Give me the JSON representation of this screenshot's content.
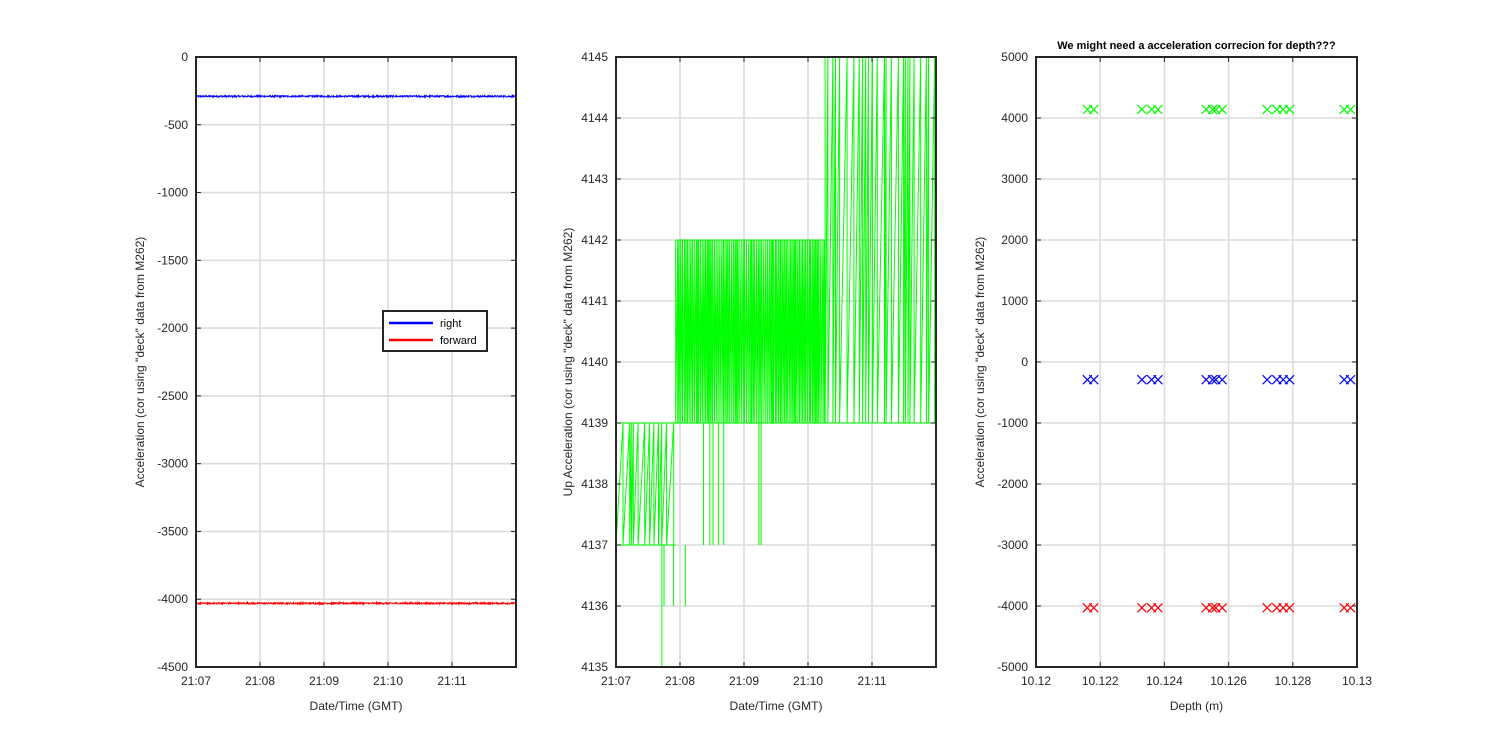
{
  "chart_data": [
    {
      "type": "line",
      "title": "",
      "xlabel": "Date/Time (GMT)",
      "ylabel": "Acceleration (cor using \"deck\" data from M262)",
      "xlim": [
        "21:07",
        "21:12"
      ],
      "xticks": [
        "21:07",
        "21:08",
        "21:09",
        "21:10",
        "21:11"
      ],
      "ylim": [
        -4500,
        0
      ],
      "yticks": [
        -4500,
        -4000,
        -3500,
        -3000,
        -2500,
        -2000,
        -1500,
        -1000,
        -500,
        0
      ],
      "grid": true,
      "legend": {
        "position": "center-right",
        "entries": [
          "right",
          "forward"
        ]
      },
      "series": [
        {
          "name": "right",
          "color": "#0000ff",
          "y_approx": -290,
          "noise": 6
        },
        {
          "name": "forward",
          "color": "#ff0000",
          "y_approx": -4030,
          "noise": 6
        }
      ]
    },
    {
      "type": "line",
      "title": "",
      "xlabel": "Date/Time (GMT)",
      "ylabel": "Up Acceleration (cor using \"deck\" data from M262)",
      "xlim": [
        "21:07",
        "21:12"
      ],
      "xticks": [
        "21:07",
        "21:08",
        "21:09",
        "21:10",
        "21:11"
      ],
      "ylim": [
        4135,
        4145
      ],
      "yticks": [
        4135,
        4136,
        4137,
        4138,
        4139,
        4140,
        4141,
        4142,
        4143,
        4144,
        4145
      ],
      "grid": true,
      "series": [
        {
          "name": "",
          "color": "#00ff00",
          "segments": [
            {
              "x": [
                "21:07:00",
                "21:07:56"
              ],
              "low": 4137,
              "high": 4139
            },
            {
              "x": [
                "21:07:56",
                "21:09:12"
              ],
              "low": 4139,
              "high": 4142
            },
            {
              "x": [
                "21:09:12",
                "21:10:16"
              ],
              "low": 4139,
              "high": 4142
            },
            {
              "x": [
                "21:10:16",
                "21:12:00"
              ],
              "low": 4139,
              "high": 4145
            }
          ],
          "dips": [
            {
              "x": "21:07:43",
              "y": 4135
            },
            {
              "x": "21:07:45",
              "y": 4136
            },
            {
              "x": "21:07:54",
              "y": 4136
            },
            {
              "x": "21:08:05",
              "y": 4136
            }
          ]
        }
      ]
    },
    {
      "type": "scatter",
      "title": "We might need a acceleration correcion for depth???",
      "xlabel": "Depth (m)",
      "ylabel": "Acceleration (cor using \"deck\" data from M262)",
      "xlim": [
        10.12,
        10.13
      ],
      "xticks": [
        10.12,
        10.122,
        10.124,
        10.126,
        10.128,
        10.13
      ],
      "ylim": [
        -5000,
        5000
      ],
      "yticks": [
        -5000,
        -4000,
        -3000,
        -2000,
        -1000,
        0,
        1000,
        2000,
        3000,
        4000,
        5000
      ],
      "grid": true,
      "marker": "x",
      "x": [
        10.1216,
        10.1218,
        10.1233,
        10.1236,
        10.1238,
        10.1253,
        10.1255,
        10.1256,
        10.1258,
        10.1272,
        10.1275,
        10.1277,
        10.1279,
        10.1296,
        10.1298
      ],
      "series": [
        {
          "name": "",
          "color": "#00ff00",
          "y": [
            4140,
            4140,
            4140,
            4140,
            4140,
            4140,
            4140,
            4140,
            4140,
            4140,
            4140,
            4140,
            4140,
            4140,
            4140
          ]
        },
        {
          "name": "",
          "color": "#0000ff",
          "y": [
            -290,
            -290,
            -290,
            -290,
            -290,
            -290,
            -290,
            -290,
            -290,
            -290,
            -290,
            -290,
            -290,
            -290,
            -290
          ]
        },
        {
          "name": "",
          "color": "#ff0000",
          "y": [
            -4030,
            -4030,
            -4030,
            -4030,
            -4030,
            -4030,
            -4030,
            -4030,
            -4030,
            -4030,
            -4030,
            -4030,
            -4030,
            -4030,
            -4030
          ]
        }
      ]
    }
  ]
}
